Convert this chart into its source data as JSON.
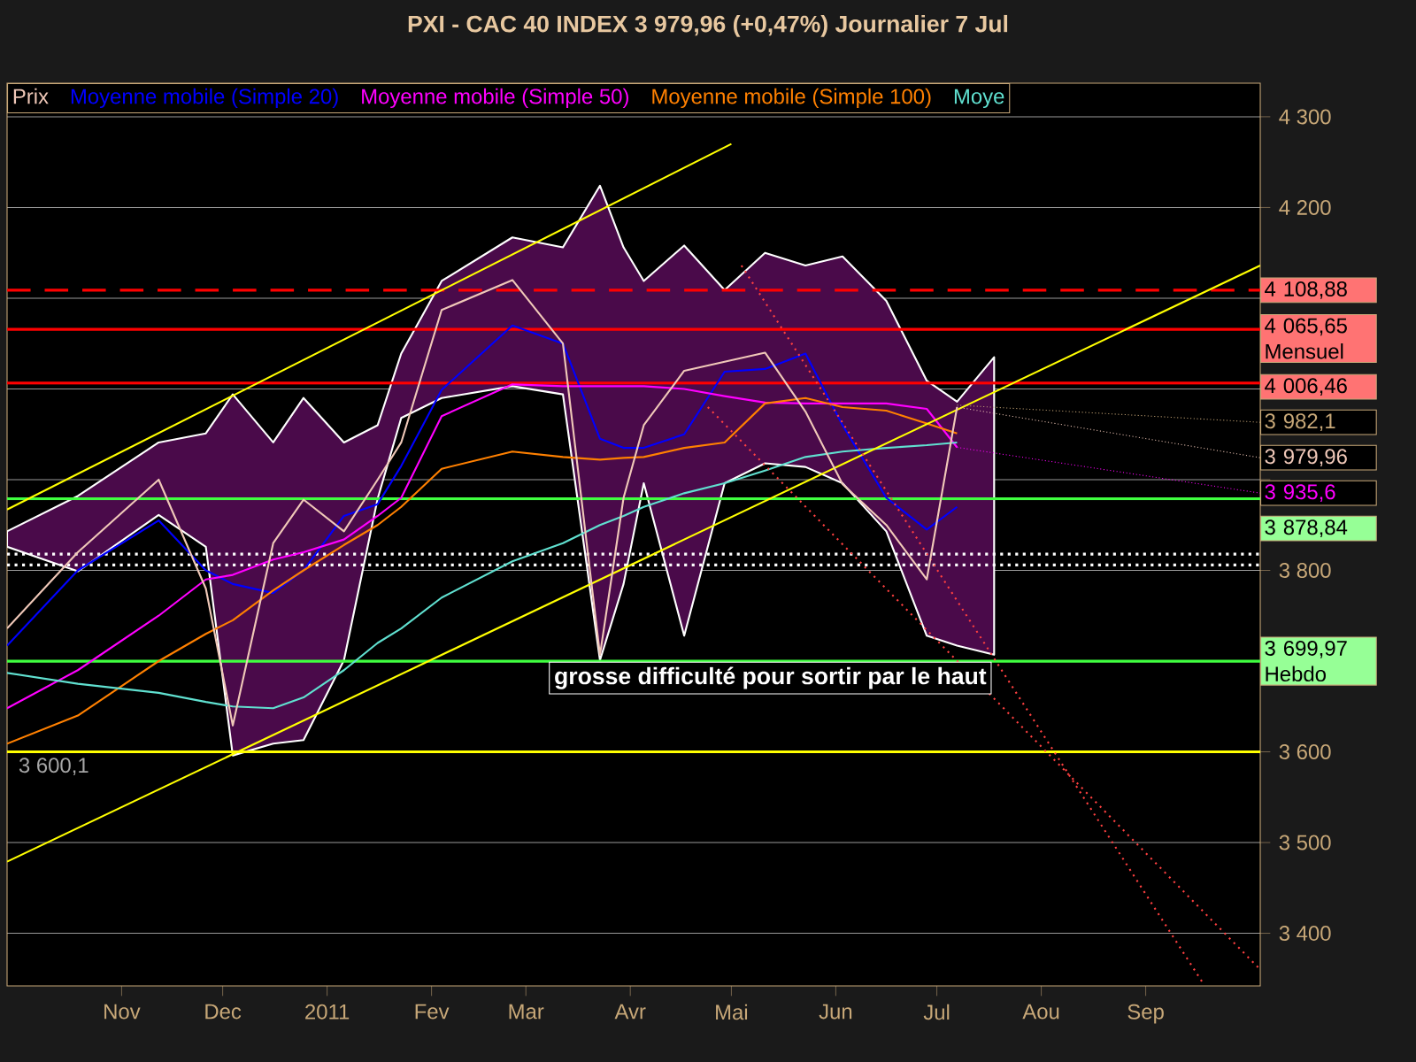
{
  "chart_data": {
    "type": "line",
    "title": "PXI - CAC 40 INDEX    3 979,96 (+0,47%)    Journalier  7 Jul",
    "x": [
      "2010-09-28",
      "2010-10-19",
      "2010-11-12",
      "2010-11-26",
      "2010-12-04",
      "2010-12-16",
      "2010-12-25",
      "2011-01-06",
      "2011-01-16",
      "2011-01-23",
      "2011-02-04",
      "2011-02-25",
      "2011-03-12",
      "2011-03-23",
      "2011-03-30",
      "2011-04-05",
      "2011-04-17",
      "2011-04-29",
      "2011-05-11",
      "2011-05-23",
      "2011-06-03",
      "2011-06-16",
      "2011-06-28",
      "2011-07-07",
      "2011-07-18"
    ],
    "series": [
      {
        "name": "Prix",
        "color": "#f0c8b8",
        "values": [
          3736,
          3820,
          3900,
          3780,
          3629,
          3830,
          3878,
          3843,
          3900,
          3941,
          4087,
          4120,
          4050,
          3707,
          3880,
          3960,
          4020,
          4030,
          4040,
          3975,
          3895,
          3850,
          3790,
          3979.96,
          null
        ]
      },
      {
        "name": "Moyenne mobile (Simple 20)",
        "color": "#0000ff",
        "values": [
          3717,
          3800,
          3855,
          3800,
          3785,
          3775,
          3800,
          3860,
          3873,
          3915,
          3999,
          4070,
          4050,
          3945,
          3935,
          3935,
          3950,
          4019,
          4022,
          4039,
          3960,
          3880,
          3845,
          3870,
          null
        ],
        "upper": [
          3843,
          3882,
          3941,
          3951,
          3994,
          3941,
          3990,
          3941,
          3960,
          4039,
          4119,
          4167,
          4156,
          4224,
          4156,
          4119,
          4158,
          4109,
          4150,
          4136,
          4146,
          4097,
          4009,
          3986,
          4035
        ],
        "lower": [
          3826,
          3799,
          3861,
          3826,
          3596,
          3609,
          3613,
          3701,
          3879,
          3968,
          3990,
          4003,
          3994,
          3701,
          3785,
          3896,
          3728,
          3896,
          3918,
          3914,
          3896,
          3843,
          3728,
          3717,
          3707
        ]
      },
      {
        "name": "Moyenne mobile (Simple 50)",
        "color": "#ff00ff",
        "values": [
          3648,
          3690,
          3750,
          3790,
          3795,
          3812,
          3820,
          3834,
          3860,
          3880,
          3970,
          4005,
          4003,
          4003,
          4003,
          4003,
          4000,
          3992,
          3985,
          3984,
          3984,
          3984,
          3978,
          3935.6,
          null
        ]
      },
      {
        "name": "Moyenne mobile (Simple 100)",
        "color": "#ff8000",
        "values": [
          3609,
          3640,
          3700,
          3730,
          3745,
          3778,
          3800,
          3828,
          3850,
          3870,
          3912,
          3931,
          3925,
          3922,
          3924,
          3925,
          3935,
          3941,
          3984,
          3990,
          3980,
          3976,
          3962,
          3951,
          null
        ]
      },
      {
        "name": "Moye",
        "color": "#60e0d0",
        "values": [
          3687,
          3675,
          3665,
          3655,
          3650,
          3648,
          3660,
          3690,
          3720,
          3736,
          3770,
          3810,
          3830,
          3850,
          3860,
          3870,
          3885,
          3896,
          3910,
          3925,
          3931,
          3935,
          3938,
          3941,
          null
        ]
      },
      {
        "color": "#ffff00",
        "x": [
          "2010-09-28",
          "2011-05-01"
        ],
        "values": [
          3867,
          4270
        ]
      },
      {
        "color": "#ffff00",
        "x": [
          "2010-09-28",
          "2011-10-05"
        ],
        "values": [
          3479,
          4136
        ]
      },
      {
        "color": "#ff4040",
        "line_style": "dotted",
        "x": [
          "2011-05-04",
          "2011-09-18"
        ],
        "values": [
          4136,
          3345
        ]
      },
      {
        "color": "#ff4040",
        "line_style": "dotted",
        "x": [
          "2011-04-24",
          "2011-10-05"
        ],
        "values": [
          3980,
          3360
        ]
      }
    ],
    "xlim": [
      "2010-09-28",
      "2011-10-05"
    ],
    "xticks": [
      {
        "value": "2010-11-01",
        "label": "Nov"
      },
      {
        "value": "2010-12-01",
        "label": "Dec"
      },
      {
        "value": "2011-01-01",
        "label": "2011"
      },
      {
        "value": "2011-02-01",
        "label": "Fev"
      },
      {
        "value": "2011-03-01",
        "label": "Mar"
      },
      {
        "value": "2011-04-01",
        "label": "Avr"
      },
      {
        "value": "2011-05-01",
        "label": "Mai"
      },
      {
        "value": "2011-06-01",
        "label": "Jun"
      },
      {
        "value": "2011-07-01",
        "label": "Jul"
      },
      {
        "value": "2011-08-01",
        "label": "Aou"
      },
      {
        "value": "2011-09-01",
        "label": "Sep"
      }
    ],
    "ylim": [
      3342,
      4337
    ],
    "yticks": [
      {
        "value": 3400,
        "label": "3 400"
      },
      {
        "value": 3500,
        "label": "3 500"
      },
      {
        "value": 3600,
        "label": "3 600"
      },
      {
        "value": 3700,
        "label": null
      },
      {
        "value": 3800,
        "label": "3 800"
      },
      {
        "value": 3900,
        "label": null
      },
      {
        "value": 4000,
        "label": null
      },
      {
        "value": 4100,
        "label": null
      },
      {
        "value": 4200,
        "label": "4 200"
      },
      {
        "value": 4300,
        "label": "4 300"
      }
    ],
    "ref_lines": [
      {
        "axis": "y",
        "value": 4108.88,
        "label": "4 108,88",
        "color": "#ff0000",
        "line_style": "dashed"
      },
      {
        "axis": "y",
        "value": 4065.65,
        "label": "4 065,65 Mensuel",
        "color": "#ff0000"
      },
      {
        "axis": "y",
        "value": 4006.46,
        "label": "4 006,46",
        "color": "#ff0000"
      },
      {
        "axis": "y",
        "value": 3878.84,
        "label": "3 878,84",
        "color": "#40ff40"
      },
      {
        "axis": "y",
        "value": 3699.97,
        "label": "3 699,97 Hebdo",
        "color": "#40ff40"
      },
      {
        "axis": "y",
        "value": 3600,
        "color": "#ffff00"
      },
      {
        "axis": "y",
        "value": 3818,
        "color": "#ffffff",
        "line_style": "dotted"
      },
      {
        "axis": "y",
        "value": 3806,
        "color": "#ffffff",
        "line_style": "dotted"
      }
    ],
    "annotations": [
      "grosse difficulté pour sortir par le haut",
      "3 600,1",
      {
        "text": "3 979,96",
        "x": "2011-07-07",
        "y": 3979.96
      },
      {
        "text": "3 982,1",
        "x": "2011-07-07",
        "y": 3982.1
      },
      {
        "text": "3 935,6",
        "x": "2011-07-07",
        "y": 3935.6
      }
    ],
    "grid": "y",
    "legend": "top left"
  }
}
